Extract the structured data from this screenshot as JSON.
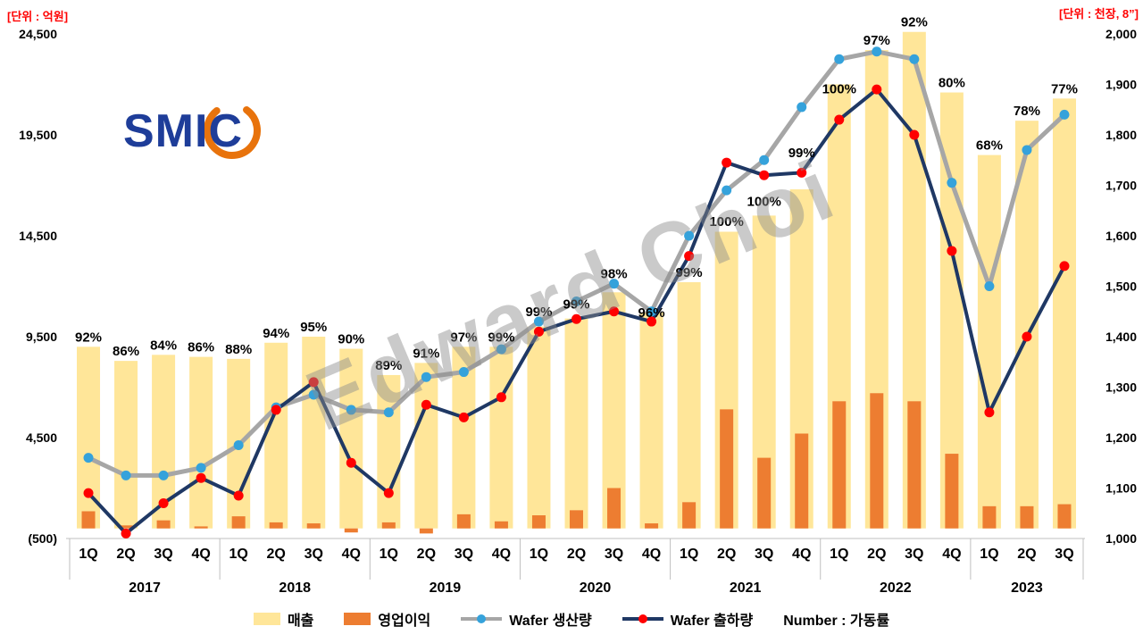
{
  "header": {
    "left_unit": "[단위 : 억원]",
    "right_unit": "[단위 : 천장, 8”]",
    "logo_text": "SMIC"
  },
  "watermark": "Edward Choi",
  "legend": {
    "items": [
      {
        "id": "revenue",
        "label": "매출",
        "swatch": "bar",
        "color": "#FFE699"
      },
      {
        "id": "op-profit",
        "label": "영업이익",
        "swatch": "bar",
        "color": "#ED7D31"
      },
      {
        "id": "production",
        "label": "Wafer 생산량",
        "swatch": "line",
        "line_color": "#A6A6A6",
        "dot_color": "#35A2DB"
      },
      {
        "id": "shipment",
        "label": "Wafer 출하량",
        "swatch": "line",
        "line_color": "#1F3864",
        "dot_color": "#FF0000"
      }
    ],
    "note": "Number : 가동률"
  },
  "chart_data": {
    "type": "combo-bar-line",
    "title": "SMIC 분기별 매출 / 영업이익 / Wafer 생산량·출하량 / 가동률",
    "x": {
      "quarter_labels": [
        "1Q",
        "2Q",
        "3Q",
        "4Q",
        "1Q",
        "2Q",
        "3Q",
        "4Q",
        "1Q",
        "2Q",
        "3Q",
        "4Q",
        "1Q",
        "2Q",
        "3Q",
        "4Q",
        "1Q",
        "2Q",
        "3Q",
        "4Q",
        "1Q",
        "2Q",
        "3Q",
        "4Q",
        "1Q",
        "2Q",
        "3Q"
      ],
      "year_groups": [
        {
          "label": "2017",
          "count": 4
        },
        {
          "label": "2018",
          "count": 4
        },
        {
          "label": "2019",
          "count": 4
        },
        {
          "label": "2020",
          "count": 4
        },
        {
          "label": "2021",
          "count": 4
        },
        {
          "label": "2022",
          "count": 4
        },
        {
          "label": "2023",
          "count": 3
        }
      ]
    },
    "left_axis": {
      "unit": "억원",
      "min": -500,
      "max": 24500,
      "ticks": [
        {
          "label": "24,500",
          "value": 24500
        },
        {
          "label": "19,500",
          "value": 19500
        },
        {
          "label": "14,500",
          "value": 14500
        },
        {
          "label": "9,500",
          "value": 9500
        },
        {
          "label": "4,500",
          "value": 4500
        },
        {
          "label": "(500)",
          "value": -500,
          "color": "#FF0000"
        }
      ]
    },
    "right_axis": {
      "unit": "천장, 8인치 환산",
      "min": 1000,
      "max": 2000,
      "ticks": [
        {
          "label": "2,000",
          "value": 2000
        },
        {
          "label": "1,900",
          "value": 1900
        },
        {
          "label": "1,800",
          "value": 1800
        },
        {
          "label": "1,700",
          "value": 1700
        },
        {
          "label": "1,600",
          "value": 1600
        },
        {
          "label": "1,500",
          "value": 1500
        },
        {
          "label": "1,400",
          "value": 1400
        },
        {
          "label": "1,300",
          "value": 1300
        },
        {
          "label": "1,200",
          "value": 1200
        },
        {
          "label": "1,100",
          "value": 1100
        },
        {
          "label": "1,000",
          "value": 1000
        }
      ]
    },
    "series": [
      {
        "name": "매출",
        "type": "bar",
        "axis": "left",
        "color": "#FFE699",
        "values": [
          9000,
          8300,
          8600,
          8500,
          8400,
          9200,
          9500,
          8900,
          7600,
          8200,
          9000,
          9000,
          10000,
          10400,
          11700,
          10700,
          12200,
          14700,
          15500,
          16800,
          22000,
          23700,
          24600,
          21600,
          18500,
          20200,
          21300
        ]
      },
      {
        "name": "영업이익",
        "type": "bar",
        "axis": "left",
        "color": "#ED7D31",
        "values": [
          850,
          150,
          400,
          100,
          600,
          300,
          250,
          -200,
          300,
          -250,
          700,
          350,
          650,
          900,
          2000,
          250,
          1300,
          5900,
          3500,
          4700,
          6300,
          6700,
          6300,
          3700,
          1100,
          1100,
          1200
        ]
      },
      {
        "name": "Wafer 생산량",
        "type": "line",
        "axis": "right",
        "color": "#A6A6A6",
        "dot": "#35A2DB",
        "values": [
          1160,
          1125,
          1125,
          1140,
          1185,
          1260,
          1285,
          1255,
          1250,
          1320,
          1330,
          1375,
          1430,
          1470,
          1505,
          1450,
          1600,
          1690,
          1750,
          1855,
          1950,
          1965,
          1950,
          1705,
          1500,
          1770,
          1840
        ]
      },
      {
        "name": "Wafer 출하량",
        "type": "line",
        "axis": "right",
        "color": "#1F3864",
        "dot": "#FF0000",
        "values": [
          1090,
          1010,
          1070,
          1120,
          1085,
          1255,
          1310,
          1150,
          1090,
          1265,
          1240,
          1280,
          1410,
          1435,
          1450,
          1430,
          1560,
          1745,
          1720,
          1725,
          1830,
          1890,
          1800,
          1570,
          1250,
          1400,
          1540
        ]
      }
    ],
    "utilization": {
      "name": "가동률",
      "labels": [
        "92%",
        "86%",
        "84%",
        "86%",
        "88%",
        "94%",
        "95%",
        "90%",
        "89%",
        "91%",
        "97%",
        "99%",
        "99%",
        "99%",
        "98%",
        "96%",
        "99%",
        "100%",
        "100%",
        "99%",
        "100%",
        "97%",
        "92%",
        "80%",
        "68%",
        "78%",
        "77%"
      ],
      "label_dy": [
        0,
        0,
        0,
        0,
        0,
        0,
        0,
        0,
        0,
        0,
        0,
        0,
        0,
        14,
        0,
        12,
        52,
        77,
        57,
        62,
        44,
        0,
        0,
        0,
        0,
        0,
        0
      ]
    },
    "legend_position": "bottom",
    "grid": false
  }
}
